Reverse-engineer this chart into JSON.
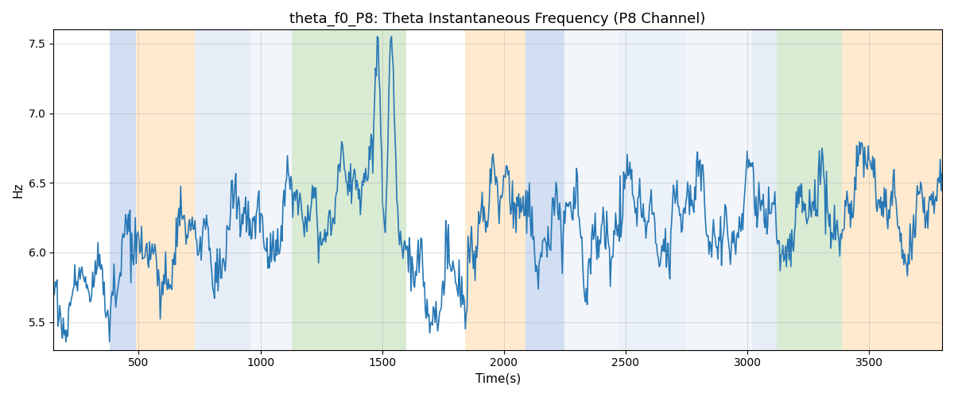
{
  "title": "theta_f0_P8: Theta Instantaneous Frequency (P8 Channel)",
  "xlabel": "Time(s)",
  "ylabel": "Hz",
  "ylim": [
    5.3,
    7.6
  ],
  "yticks": [
    5.5,
    6.0,
    6.5,
    7.0,
    7.5
  ],
  "xlim": [
    150,
    3800
  ],
  "xticks": [
    500,
    1000,
    1500,
    2000,
    2500,
    3000,
    3500
  ],
  "line_color": "#2878b5",
  "line_width": 1.2,
  "background_color": "#ffffff",
  "shaded_regions": [
    {
      "xmin": 380,
      "xmax": 490,
      "color": "#aec6e8",
      "alpha": 0.55
    },
    {
      "xmin": 490,
      "xmax": 730,
      "color": "#ffd9a8",
      "alpha": 0.55
    },
    {
      "xmin": 730,
      "xmax": 960,
      "color": "#c8d9ef",
      "alpha": 0.45
    },
    {
      "xmin": 960,
      "xmax": 1130,
      "color": "#dce8f5",
      "alpha": 0.35
    },
    {
      "xmin": 1130,
      "xmax": 1600,
      "color": "#b5d9a8",
      "alpha": 0.5
    },
    {
      "xmin": 1840,
      "xmax": 2090,
      "color": "#ffd9a8",
      "alpha": 0.55
    },
    {
      "xmin": 2090,
      "xmax": 2250,
      "color": "#aec6e8",
      "alpha": 0.55
    },
    {
      "xmin": 2250,
      "xmax": 2470,
      "color": "#dce8f5",
      "alpha": 0.35
    },
    {
      "xmin": 2470,
      "xmax": 2600,
      "color": "#c8d9ef",
      "alpha": 0.35
    },
    {
      "xmin": 2600,
      "xmax": 2750,
      "color": "#c8d9ef",
      "alpha": 0.35
    },
    {
      "xmin": 2750,
      "xmax": 3020,
      "color": "#dce8f5",
      "alpha": 0.35
    },
    {
      "xmin": 3020,
      "xmax": 3120,
      "color": "#c8d9ef",
      "alpha": 0.45
    },
    {
      "xmin": 3120,
      "xmax": 3390,
      "color": "#b5d9a8",
      "alpha": 0.5
    },
    {
      "xmin": 3390,
      "xmax": 3800,
      "color": "#ffd9a8",
      "alpha": 0.55
    }
  ],
  "seed": 17,
  "n_points": 1000,
  "title_fontsize": 13,
  "label_fontsize": 11,
  "grid_color": "#aaaaaa",
  "grid_alpha": 0.6,
  "grid_lw": 0.5
}
